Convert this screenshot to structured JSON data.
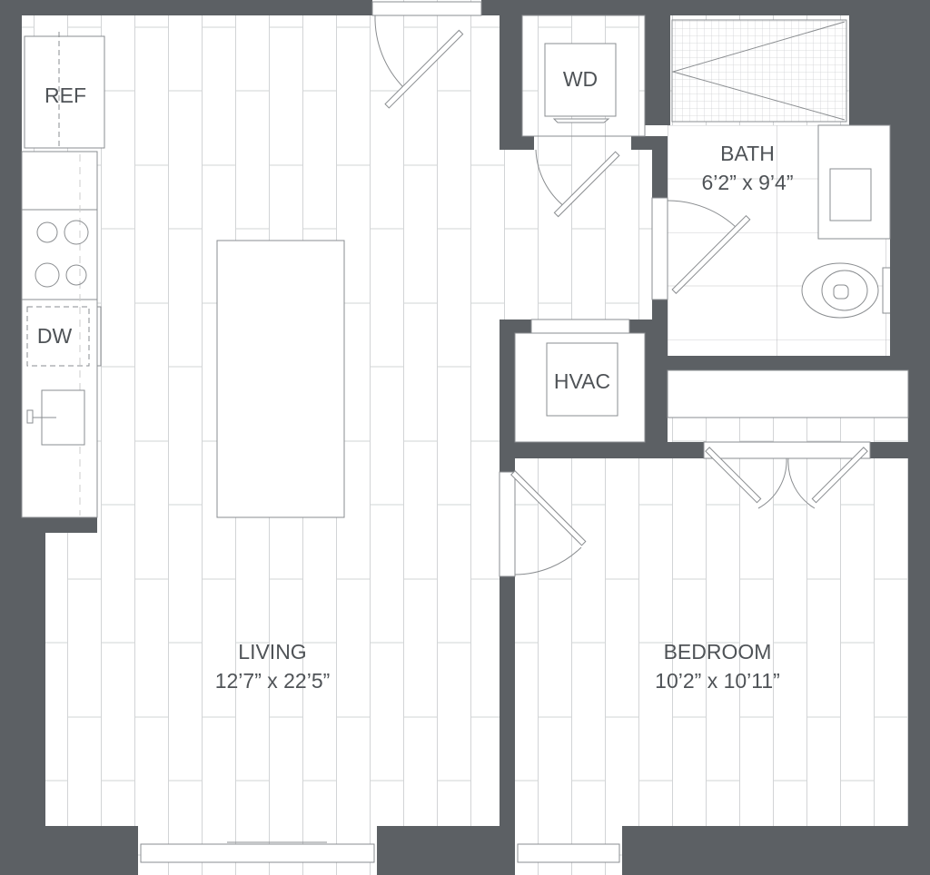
{
  "colors": {
    "wall": "#5c6064",
    "line": "#8a8d90",
    "tile": "#d2d4d6",
    "floor": "#ffffff"
  },
  "rooms": {
    "living": {
      "name": "LIVING",
      "dims": "12’7” x 22’5”"
    },
    "bedroom": {
      "name": "BEDROOM",
      "dims": "10’2” x 10’11”"
    },
    "bath": {
      "name": "BATH",
      "dims": "6’2” x 9’4”"
    }
  },
  "fixtures": {
    "ref": "REF",
    "dw": "DW",
    "wd": "WD",
    "hvac": "HVAC"
  }
}
